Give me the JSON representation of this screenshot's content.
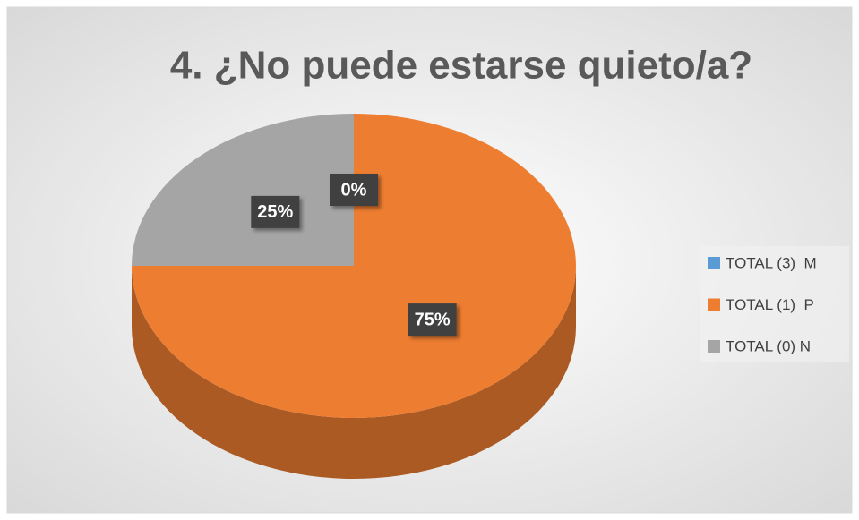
{
  "chart_data": {
    "type": "pie",
    "title": "4. ¿No puede estarse quieto/a?",
    "categories": [
      "TOTAL (3)  M",
      "TOTAL (1)  P",
      "TOTAL (0) N"
    ],
    "values": [
      0,
      75,
      25
    ],
    "value_labels": [
      "0%",
      "75%",
      "25%"
    ],
    "colors": [
      "#5b9bd5",
      "#ed7d31",
      "#a5a5a5"
    ],
    "legend": "right"
  }
}
